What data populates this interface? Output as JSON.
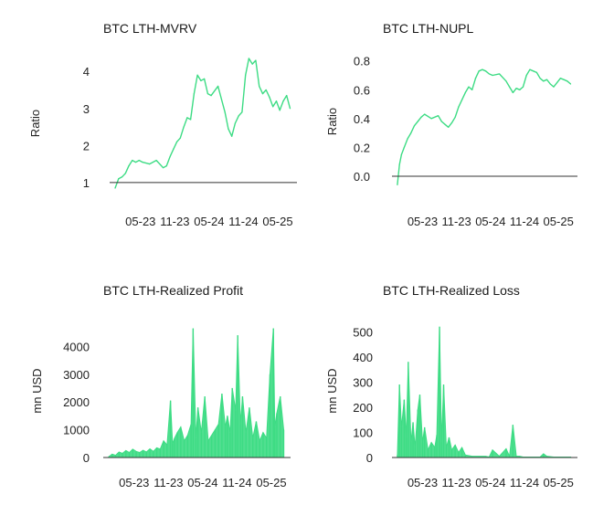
{
  "chart_data": [
    {
      "id": "mvrv",
      "type": "line",
      "title": "BTC LTH-MVRV",
      "ylabel": "Ratio",
      "xlabel": "",
      "ylim": [
        0.8,
        4.4
      ],
      "yticks": [
        1,
        2,
        3,
        4
      ],
      "ytick_labels": [
        "1",
        "2",
        "3",
        "4"
      ],
      "baseline": 1,
      "x_range": [
        2022.92,
        2025.65
      ],
      "xticks": [
        2023.37,
        2023.87,
        2024.37,
        2024.87,
        2025.37
      ],
      "xtick_labels": [
        "05-23",
        "11-23",
        "05-24",
        "11-24",
        "05-25"
      ],
      "color": "#3ddc84",
      "series": [
        {
          "name": "LTH-MVRV",
          "x": [
            2023.0,
            2023.05,
            2023.1,
            2023.15,
            2023.2,
            2023.25,
            2023.3,
            2023.35,
            2023.4,
            2023.5,
            2023.6,
            2023.7,
            2023.75,
            2023.8,
            2023.85,
            2023.9,
            2023.95,
            2024.0,
            2024.05,
            2024.1,
            2024.15,
            2024.2,
            2024.25,
            2024.3,
            2024.35,
            2024.4,
            2024.5,
            2024.6,
            2024.65,
            2024.7,
            2024.75,
            2024.8,
            2024.85,
            2024.9,
            2024.95,
            2025.0,
            2025.05,
            2025.1,
            2025.15,
            2025.2,
            2025.25,
            2025.3,
            2025.35,
            2025.4,
            2025.45,
            2025.5,
            2025.55
          ],
          "y": [
            0.85,
            1.1,
            1.15,
            1.25,
            1.45,
            1.6,
            1.55,
            1.6,
            1.55,
            1.5,
            1.6,
            1.4,
            1.45,
            1.7,
            1.9,
            2.1,
            2.2,
            2.5,
            2.75,
            2.7,
            3.4,
            3.9,
            3.75,
            3.8,
            3.4,
            3.35,
            3.6,
            2.9,
            2.45,
            2.25,
            2.6,
            2.8,
            2.9,
            3.9,
            4.35,
            4.2,
            4.3,
            3.6,
            3.4,
            3.5,
            3.3,
            3.05,
            3.2,
            2.95,
            3.2,
            3.35,
            3.0
          ]
        }
      ]
    },
    {
      "id": "nupl",
      "type": "line",
      "title": "BTC LTH-NUPL",
      "ylabel": "Ratio",
      "xlabel": "",
      "ylim": [
        -0.07,
        0.83
      ],
      "yticks": [
        0,
        0.2,
        0.4,
        0.6,
        0.8
      ],
      "ytick_labels": [
        "0.0",
        "0.2",
        "0.4",
        "0.6",
        "0.8"
      ],
      "baseline": 0,
      "x_range": [
        2022.92,
        2025.65
      ],
      "xticks": [
        2023.37,
        2023.87,
        2024.37,
        2024.87,
        2025.37
      ],
      "xtick_labels": [
        "05-23",
        "11-23",
        "05-24",
        "11-24",
        "05-25"
      ],
      "color": "#3ddc84",
      "series": [
        {
          "name": "LTH-NUPL",
          "x": [
            2023.0,
            2023.03,
            2023.06,
            2023.1,
            2023.15,
            2023.2,
            2023.25,
            2023.3,
            2023.35,
            2023.4,
            2023.5,
            2023.6,
            2023.65,
            2023.7,
            2023.75,
            2023.8,
            2023.85,
            2023.9,
            2023.95,
            2024.0,
            2024.05,
            2024.1,
            2024.15,
            2024.2,
            2024.25,
            2024.3,
            2024.35,
            2024.4,
            2024.5,
            2024.6,
            2024.65,
            2024.7,
            2024.75,
            2024.8,
            2024.85,
            2024.9,
            2024.95,
            2025.0,
            2025.05,
            2025.1,
            2025.15,
            2025.2,
            2025.25,
            2025.3,
            2025.35,
            2025.4,
            2025.45,
            2025.5,
            2025.55
          ],
          "y": [
            -0.06,
            0.08,
            0.15,
            0.2,
            0.26,
            0.3,
            0.35,
            0.38,
            0.41,
            0.43,
            0.4,
            0.42,
            0.38,
            0.36,
            0.34,
            0.37,
            0.41,
            0.48,
            0.53,
            0.58,
            0.62,
            0.6,
            0.68,
            0.73,
            0.74,
            0.73,
            0.71,
            0.7,
            0.71,
            0.66,
            0.62,
            0.58,
            0.61,
            0.6,
            0.62,
            0.7,
            0.74,
            0.73,
            0.72,
            0.68,
            0.66,
            0.67,
            0.64,
            0.62,
            0.65,
            0.68,
            0.67,
            0.66,
            0.64
          ]
        }
      ]
    },
    {
      "id": "profit",
      "type": "area",
      "title": "BTC LTH-Realized Profit",
      "ylabel": "mn USD",
      "xlabel": "",
      "ylim": [
        0,
        4800
      ],
      "yticks": [
        0,
        1000,
        2000,
        3000,
        4000
      ],
      "ytick_labels": [
        "0",
        "1000",
        "2000",
        "3000",
        "4000"
      ],
      "baseline": 0,
      "x_range": [
        2022.92,
        2025.65
      ],
      "xticks": [
        2023.37,
        2023.87,
        2024.37,
        2024.87,
        2025.37
      ],
      "xtick_labels": [
        "05-23",
        "11-23",
        "05-24",
        "11-24",
        "05-25"
      ],
      "color": "#3ddc84",
      "series": [
        {
          "name": "Realized Profit",
          "x": [
            2023.0,
            2023.05,
            2023.1,
            2023.15,
            2023.2,
            2023.25,
            2023.3,
            2023.35,
            2023.4,
            2023.45,
            2023.5,
            2023.55,
            2023.6,
            2023.65,
            2023.7,
            2023.75,
            2023.8,
            2023.85,
            2023.9,
            2023.93,
            2023.96,
            2024.0,
            2024.05,
            2024.1,
            2024.15,
            2024.2,
            2024.23,
            2024.27,
            2024.3,
            2024.35,
            2024.4,
            2024.45,
            2024.5,
            2024.55,
            2024.6,
            2024.65,
            2024.7,
            2024.73,
            2024.77,
            2024.8,
            2024.85,
            2024.88,
            2024.92,
            2024.95,
            2025.0,
            2025.05,
            2025.1,
            2025.15,
            2025.2,
            2025.25,
            2025.3,
            2025.35,
            2025.4,
            2025.42,
            2025.45,
            2025.5,
            2025.55
          ],
          "y": [
            30,
            120,
            80,
            200,
            150,
            250,
            180,
            300,
            220,
            180,
            260,
            200,
            310,
            220,
            350,
            300,
            600,
            450,
            2050,
            500,
            700,
            900,
            1100,
            600,
            800,
            1200,
            4650,
            700,
            1800,
            900,
            2200,
            600,
            800,
            1000,
            1200,
            2300,
            1100,
            1500,
            900,
            2500,
            1700,
            4400,
            1200,
            2200,
            900,
            1800,
            700,
            1300,
            600,
            900,
            700,
            3000,
            4650,
            1100,
            1600,
            2200,
            1000
          ]
        }
      ]
    },
    {
      "id": "loss",
      "type": "area",
      "title": "BTC LTH-Realized Loss",
      "ylabel": "mn USD",
      "xlabel": "",
      "ylim": [
        0,
        530
      ],
      "yticks": [
        0,
        100,
        200,
        300,
        400,
        500
      ],
      "ytick_labels": [
        "0",
        "100",
        "200",
        "300",
        "400",
        "500"
      ],
      "baseline": 0,
      "x_range": [
        2022.92,
        2025.65
      ],
      "xticks": [
        2023.37,
        2023.87,
        2024.37,
        2024.87,
        2025.37
      ],
      "xtick_labels": [
        "05-23",
        "11-23",
        "05-24",
        "11-24",
        "05-25"
      ],
      "color": "#3ddc84",
      "series": [
        {
          "name": "Realized Loss",
          "x": [
            2023.0,
            2023.03,
            2023.06,
            2023.1,
            2023.13,
            2023.16,
            2023.2,
            2023.23,
            2023.26,
            2023.3,
            2023.33,
            2023.37,
            2023.4,
            2023.45,
            2023.5,
            2023.55,
            2023.58,
            2023.62,
            2023.65,
            2023.68,
            2023.72,
            2023.76,
            2023.8,
            2023.85,
            2023.9,
            2023.95,
            2024.0,
            2024.1,
            2024.2,
            2024.3,
            2024.35,
            2024.4,
            2024.5,
            2024.6,
            2024.65,
            2024.7,
            2024.75,
            2024.8,
            2024.85,
            2024.9,
            2025.0,
            2025.1,
            2025.15,
            2025.2,
            2025.3,
            2025.4,
            2025.5,
            2025.55
          ],
          "y": [
            10,
            290,
            120,
            230,
            80,
            380,
            60,
            140,
            40,
            190,
            250,
            60,
            120,
            30,
            60,
            40,
            90,
            520,
            60,
            290,
            40,
            80,
            30,
            50,
            20,
            40,
            10,
            5,
            5,
            5,
            2,
            30,
            5,
            35,
            5,
            130,
            5,
            5,
            2,
            2,
            2,
            2,
            15,
            5,
            2,
            2,
            2,
            2
          ]
        }
      ]
    }
  ]
}
